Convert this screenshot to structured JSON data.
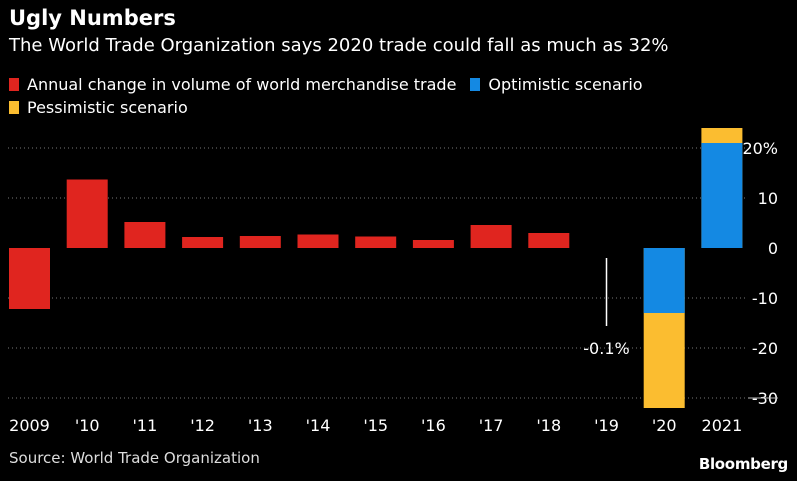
{
  "colors": {
    "annual": "#e0251f",
    "optimistic": "#1489e3",
    "pessimistic": "#fbbd30",
    "grid": "#777777",
    "background": "#000000"
  },
  "header": {
    "title": "Ugly Numbers",
    "subtitle": "The World Trade Organization says 2020 trade could fall as much as 32%"
  },
  "legend": {
    "annual": "Annual change in volume of world merchandise trade",
    "optimistic": "Optimistic scenario",
    "pessimistic": "Pessimistic scenario"
  },
  "footer": {
    "source": "Source: World Trade Organization",
    "brand": "Bloomberg"
  },
  "chart_data": {
    "type": "bar",
    "title": "Ugly Numbers",
    "subtitle": "The World Trade Organization says 2020 trade could fall as much as 32%",
    "categories": [
      "2009",
      "'10",
      "'11",
      "'12",
      "'13",
      "'14",
      "'15",
      "'16",
      "'17",
      "'18",
      "'19",
      "'20",
      "2021"
    ],
    "series": [
      {
        "name": "Annual change in volume of world merchandise trade",
        "values": [
          -12.2,
          13.7,
          5.2,
          2.2,
          2.4,
          2.7,
          2.3,
          1.6,
          4.6,
          3.0,
          -0.1,
          null,
          null
        ]
      },
      {
        "name": "Optimistic scenario",
        "values": [
          null,
          null,
          null,
          null,
          null,
          null,
          null,
          null,
          null,
          null,
          null,
          -13,
          21
        ]
      },
      {
        "name": "Pessimistic scenario",
        "values": [
          null,
          null,
          null,
          null,
          null,
          null,
          null,
          null,
          null,
          null,
          null,
          -32,
          24
        ]
      }
    ],
    "yticks": [
      20,
      10,
      0,
      -10,
      -20,
      -30
    ],
    "ytick_labels": [
      "20%",
      "10",
      "0",
      "-10",
      "-20",
      "-30"
    ],
    "ylim": [
      -32,
      24
    ],
    "annotations": [
      {
        "category": "'19",
        "text": "-0.1%"
      }
    ],
    "grid": true,
    "legend_position": "top-left",
    "y_axis_position": "right"
  }
}
